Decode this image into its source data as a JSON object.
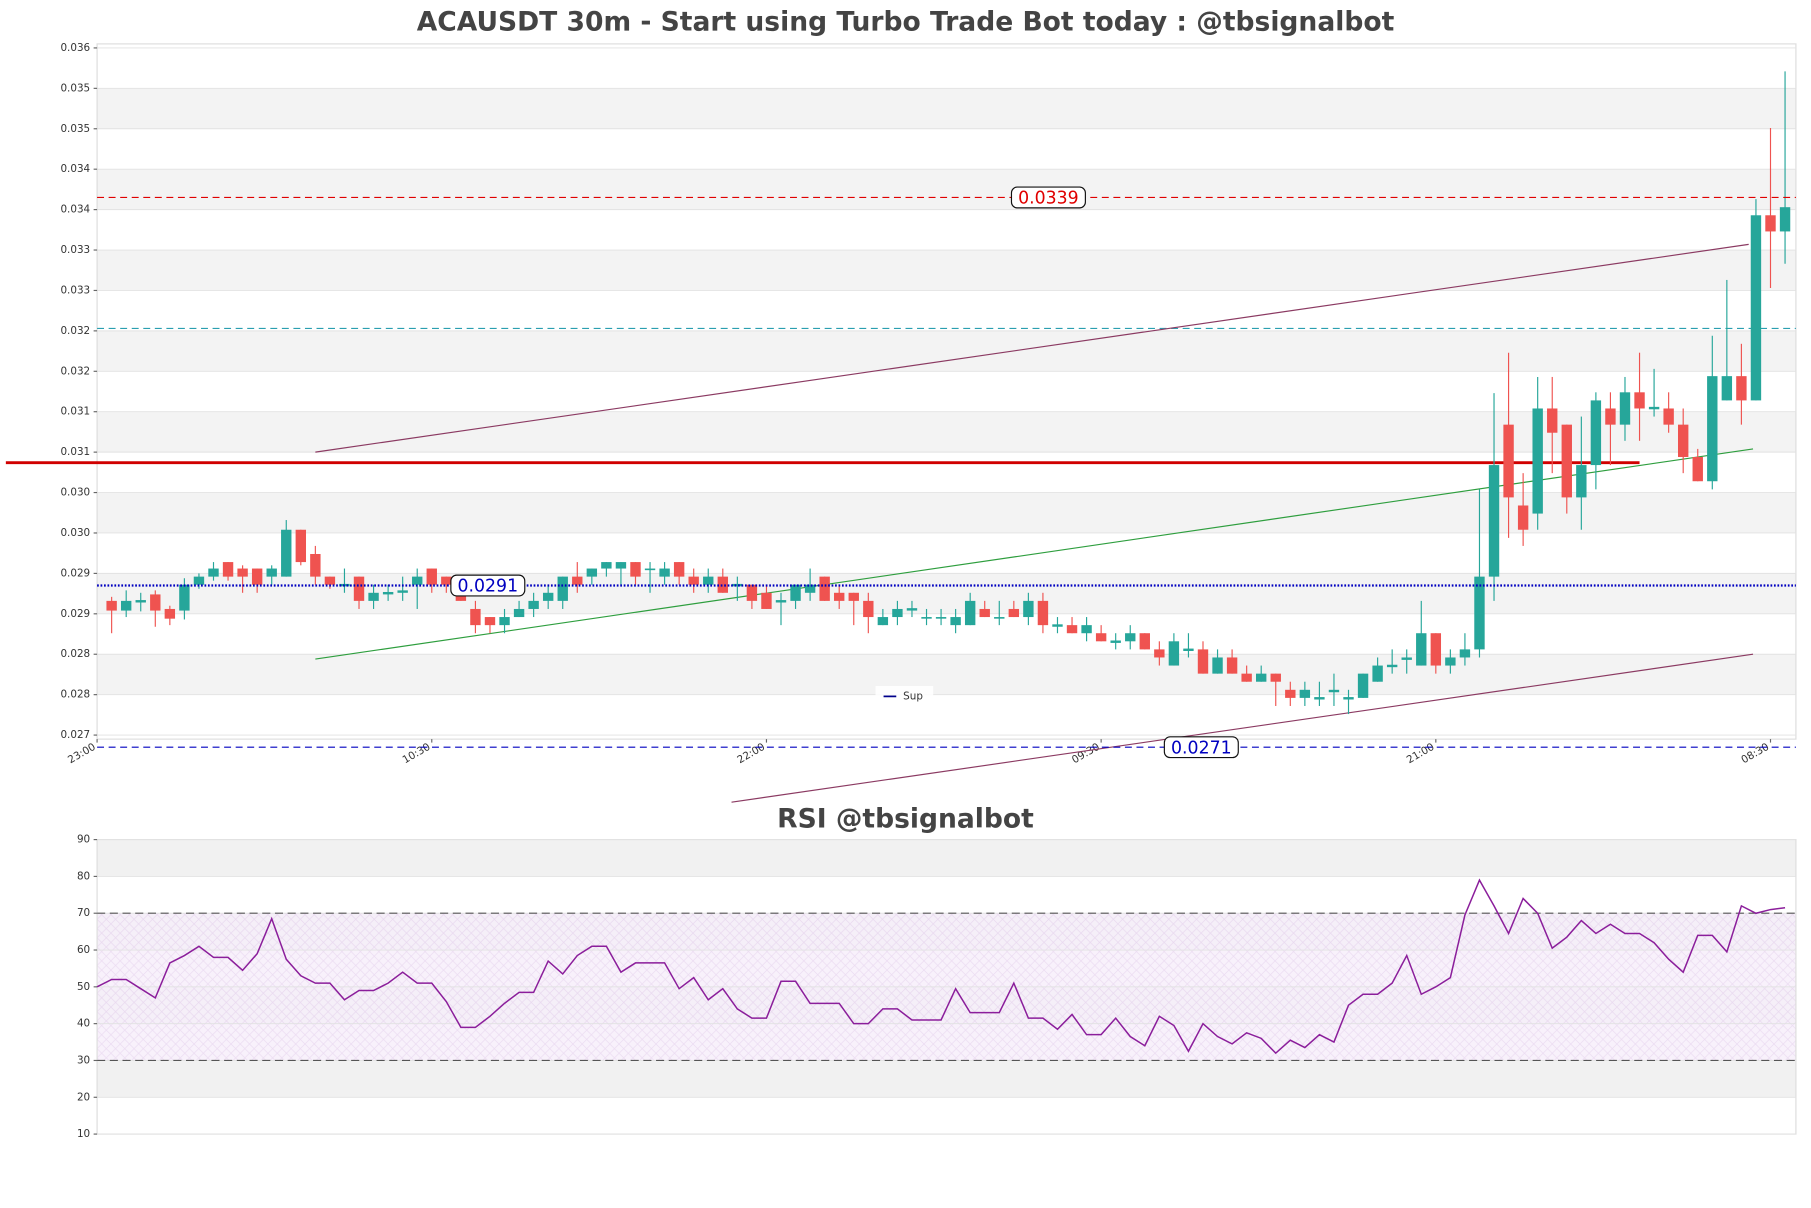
{
  "chart_data": [
    {
      "type": "candlestick",
      "title": "ACAUSDT 30m - Start using Turbo Trade Bot today : @tbsignalbot",
      "categories": [
        "23:00",
        null,
        null,
        null,
        null,
        null,
        null,
        null,
        null,
        null,
        null,
        null,
        null,
        null,
        null,
        null,
        null,
        null,
        null,
        null,
        null,
        null,
        null,
        "10:30",
        null,
        null,
        null,
        null,
        null,
        null,
        null,
        null,
        null,
        null,
        null,
        null,
        null,
        null,
        null,
        null,
        null,
        null,
        null,
        null,
        null,
        null,
        "22:00",
        null,
        null,
        null,
        null,
        null,
        null,
        null,
        null,
        null,
        null,
        null,
        null,
        null,
        null,
        null,
        null,
        null,
        null,
        null,
        null,
        null,
        null,
        "09:30",
        null,
        null,
        null,
        null,
        null,
        null,
        null,
        null,
        null,
        null,
        null,
        null,
        null,
        null,
        null,
        null,
        null,
        null,
        null,
        null,
        null,
        null,
        "21:00",
        null,
        null,
        null,
        null,
        null,
        null,
        null,
        null,
        null,
        null,
        null,
        null,
        null,
        null,
        null,
        null,
        null,
        null,
        null,
        null,
        null,
        null,
        "08:30",
        null
      ],
      "open": [
        null,
        0.02891,
        0.02879,
        0.02889,
        0.02899,
        0.02881,
        0.02879,
        0.02911,
        0.02921,
        0.02939,
        0.02931,
        0.02931,
        0.02921,
        0.02921,
        0.02979,
        0.02949,
        0.02921,
        0.02909,
        0.02921,
        0.02891,
        0.02899,
        0.02901,
        0.02911,
        0.02931,
        0.02921,
        0.02911,
        0.02881,
        0.02871,
        0.02861,
        0.02871,
        0.02881,
        0.02891,
        0.02891,
        0.02921,
        0.02921,
        0.02931,
        0.02931,
        0.02939,
        0.02929,
        0.02921,
        0.02939,
        0.02921,
        0.02911,
        0.02921,
        0.02909,
        0.02911,
        0.02901,
        0.02889,
        0.02891,
        0.02901,
        0.02921,
        0.02901,
        0.02901,
        0.02891,
        0.02861,
        0.02871,
        0.02879,
        0.02869,
        0.02869,
        0.02861,
        0.02861,
        0.02881,
        0.02869,
        0.02881,
        0.02871,
        0.02891,
        0.02859,
        0.02861,
        0.02851,
        0.02851,
        0.02839,
        0.02841,
        0.02851,
        0.02831,
        0.02811,
        0.02829,
        0.02831,
        0.02801,
        0.02821,
        0.02801,
        0.02791,
        0.02801,
        0.02781,
        0.02771,
        0.02769,
        0.02778,
        0.02769,
        0.02771,
        0.02791,
        0.02809,
        0.02818,
        0.02811,
        0.02851,
        0.02811,
        0.02821,
        0.02831,
        0.02921,
        0.03109,
        0.03009,
        0.02999,
        0.03129,
        0.03109,
        0.03019,
        0.03059,
        0.03129,
        0.03109,
        0.03149,
        0.03128,
        0.03129,
        0.03109,
        0.03069,
        0.03039,
        0.03139,
        0.03169,
        0.03139,
        0.03368,
        0.03348
      ],
      "high": [
        null,
        0.02896,
        0.02904,
        0.02901,
        0.02904,
        0.02885,
        0.02919,
        0.02925,
        0.02939,
        0.02939,
        0.02935,
        0.02931,
        0.02935,
        0.02991,
        0.02979,
        0.02959,
        0.02921,
        0.02931,
        0.02921,
        0.02911,
        0.02911,
        0.02921,
        0.02931,
        0.02931,
        0.02921,
        0.02921,
        0.02891,
        0.02871,
        0.02881,
        0.02891,
        0.02901,
        0.02911,
        0.02921,
        0.02939,
        0.02931,
        0.02939,
        0.02939,
        0.02939,
        0.02939,
        0.02939,
        0.02939,
        0.02931,
        0.02931,
        0.02931,
        0.02921,
        0.02911,
        0.02911,
        0.02901,
        0.02911,
        0.02931,
        0.02921,
        0.02911,
        0.02901,
        0.02901,
        0.02881,
        0.02891,
        0.02891,
        0.02881,
        0.02881,
        0.02881,
        0.02901,
        0.02891,
        0.02891,
        0.02891,
        0.02901,
        0.02901,
        0.02871,
        0.02871,
        0.02871,
        0.02861,
        0.02851,
        0.02861,
        0.02851,
        0.02841,
        0.02851,
        0.02851,
        0.02841,
        0.02831,
        0.02831,
        0.02811,
        0.02811,
        0.02801,
        0.02791,
        0.02791,
        0.02791,
        0.02801,
        0.02781,
        0.02801,
        0.02821,
        0.02831,
        0.02831,
        0.02891,
        0.02851,
        0.02831,
        0.02851,
        0.03029,
        0.03148,
        0.03198,
        0.03049,
        0.03168,
        0.03168,
        0.03109,
        0.03119,
        0.03149,
        0.03149,
        0.03168,
        0.03198,
        0.03178,
        0.03149,
        0.03129,
        0.03079,
        0.03219,
        0.03288,
        0.03209,
        0.03388,
        0.03476,
        0.03546
      ],
      "low": [
        null,
        0.02851,
        0.02871,
        0.02878,
        0.02859,
        0.02861,
        0.02868,
        0.02906,
        0.02916,
        0.02916,
        0.02901,
        0.02901,
        0.02911,
        0.02921,
        0.02935,
        0.02911,
        0.02906,
        0.02901,
        0.02881,
        0.02881,
        0.02891,
        0.02891,
        0.02881,
        0.02901,
        0.02901,
        0.02891,
        0.02851,
        0.02851,
        0.02851,
        0.02871,
        0.02871,
        0.02881,
        0.02881,
        0.02901,
        0.02911,
        0.02921,
        0.02911,
        0.02911,
        0.02901,
        0.02911,
        0.02911,
        0.02901,
        0.02901,
        0.02901,
        0.02891,
        0.02881,
        0.02881,
        0.02861,
        0.02881,
        0.02891,
        0.02891,
        0.02881,
        0.02861,
        0.02851,
        0.02861,
        0.02861,
        0.02871,
        0.02861,
        0.02861,
        0.02851,
        0.02861,
        0.02871,
        0.02861,
        0.02871,
        0.02861,
        0.02851,
        0.02851,
        0.02851,
        0.02841,
        0.02841,
        0.02831,
        0.02831,
        0.02831,
        0.02811,
        0.02811,
        0.02821,
        0.02801,
        0.02801,
        0.02801,
        0.02791,
        0.02791,
        0.02761,
        0.02761,
        0.02761,
        0.02761,
        0.02761,
        0.02751,
        0.02771,
        0.02791,
        0.02801,
        0.02801,
        0.02811,
        0.02801,
        0.02801,
        0.02811,
        0.02821,
        0.02891,
        0.02969,
        0.02959,
        0.02979,
        0.03049,
        0.02999,
        0.02979,
        0.03029,
        0.03059,
        0.03089,
        0.03089,
        0.03119,
        0.03099,
        0.03049,
        0.03039,
        0.03029,
        0.03139,
        0.03109,
        0.03139,
        0.03278,
        0.03308
      ],
      "close": [
        null,
        0.02879,
        0.02891,
        0.02892,
        0.02879,
        0.02869,
        0.02911,
        0.02921,
        0.02931,
        0.02921,
        0.02921,
        0.02911,
        0.02931,
        0.02979,
        0.02939,
        0.02921,
        0.02911,
        0.02912,
        0.02891,
        0.02901,
        0.02902,
        0.02904,
        0.02921,
        0.02911,
        0.02911,
        0.02891,
        0.02861,
        0.02861,
        0.02871,
        0.02881,
        0.02891,
        0.02901,
        0.02921,
        0.02911,
        0.02931,
        0.02939,
        0.02939,
        0.02921,
        0.02931,
        0.02931,
        0.02921,
        0.02911,
        0.02921,
        0.02901,
        0.02912,
        0.02891,
        0.02881,
        0.02892,
        0.02911,
        0.02911,
        0.02891,
        0.02891,
        0.02891,
        0.02871,
        0.02871,
        0.02881,
        0.02882,
        0.02871,
        0.02871,
        0.02871,
        0.02891,
        0.02871,
        0.02871,
        0.02871,
        0.02891,
        0.02861,
        0.02862,
        0.02851,
        0.02861,
        0.02841,
        0.02842,
        0.02851,
        0.02831,
        0.02821,
        0.02841,
        0.02832,
        0.02801,
        0.02821,
        0.02801,
        0.02791,
        0.02801,
        0.02791,
        0.02771,
        0.02781,
        0.02772,
        0.02781,
        0.02772,
        0.02801,
        0.02811,
        0.02812,
        0.02821,
        0.02851,
        0.02811,
        0.02821,
        0.02831,
        0.02921,
        0.03059,
        0.03019,
        0.02979,
        0.03129,
        0.03099,
        0.03019,
        0.03059,
        0.03139,
        0.03109,
        0.03149,
        0.03129,
        0.03131,
        0.03109,
        0.03069,
        0.03039,
        0.03169,
        0.03169,
        0.03139,
        0.03368,
        0.03348,
        0.03378
      ],
      "up_color": "#26a69a",
      "down_color": "#ef5350",
      "ylim": [
        0.0272,
        0.0358
      ],
      "yticks": [
        {
          "value": 0.02725,
          "label": "0.027"
        },
        {
          "value": 0.02775,
          "label": "0.028"
        },
        {
          "value": 0.02825,
          "label": "0.028"
        },
        {
          "value": 0.02875,
          "label": "0.029"
        },
        {
          "value": 0.02925,
          "label": "0.029"
        },
        {
          "value": 0.02975,
          "label": "0.030"
        },
        {
          "value": 0.03025,
          "label": "0.030"
        },
        {
          "value": 0.03075,
          "label": "0.031"
        },
        {
          "value": 0.03125,
          "label": "0.031"
        },
        {
          "value": 0.03175,
          "label": "0.032"
        },
        {
          "value": 0.03225,
          "label": "0.032"
        },
        {
          "value": 0.03275,
          "label": "0.033"
        },
        {
          "value": 0.03325,
          "label": "0.033"
        },
        {
          "value": 0.03375,
          "label": "0.034"
        },
        {
          "value": 0.03425,
          "label": "0.034"
        },
        {
          "value": 0.03475,
          "label": "0.035"
        },
        {
          "value": 0.03525,
          "label": "0.035"
        },
        {
          "value": 0.03575,
          "label": "0.036"
        }
      ],
      "levels": [
        {
          "value": 0.0339,
          "color": "#e00000",
          "style": "dashed",
          "pos": 0.56
        },
        {
          "value": 0.0291,
          "color": "#0000c0",
          "style": "dotted",
          "pos": 0.23
        },
        {
          "value": 0.0271,
          "color": "#0000c0",
          "style": "dashed",
          "pos": 0.65
        }
      ],
      "extra_level": {
        "value": 0.03228,
        "color": "#2a9fb0"
      },
      "resistance": {
        "value": 0.03062,
        "color": "#d00000"
      },
      "trendlines": [
        {
          "x": [
            15,
            113.5
          ],
          "values": [
            0.03075,
            0.03332
          ],
          "color": "#8b3a62"
        },
        {
          "x": [
            15,
            113.8
          ],
          "values": [
            0.02819,
            0.03079
          ],
          "color": "#2e9e3e"
        },
        {
          "x": [
            43.6,
            113.8
          ],
          "values": [
            0.02642,
            0.02825
          ],
          "color": "#8b3a62"
        }
      ],
      "legend": {
        "name": "Sup",
        "color": "#00008b"
      }
    },
    {
      "type": "line",
      "title": "RSI @tbsignalbot",
      "color": "#8b1e9b",
      "values": [
        50,
        52,
        52,
        49.5,
        47,
        56.5,
        58.5,
        61,
        58,
        58,
        54.5,
        59,
        68.5,
        57.5,
        53,
        51,
        51,
        46.5,
        49,
        49,
        51,
        54,
        51,
        51,
        46,
        39,
        39,
        42,
        45.5,
        48.5,
        48.5,
        57,
        53.5,
        58.5,
        61,
        61,
        54,
        56.5,
        56.5,
        56.5,
        49.5,
        52.5,
        46.5,
        49.5,
        44,
        41.5,
        41.5,
        51.5,
        51.5,
        45.5,
        45.5,
        45.5,
        40,
        40,
        44,
        44,
        41,
        41,
        41,
        49.5,
        43,
        43,
        43,
        51,
        41.5,
        41.5,
        38.5,
        42.5,
        37,
        37,
        41.5,
        36.5,
        34,
        42,
        39.5,
        32.5,
        40,
        36.5,
        34.5,
        37.5,
        36,
        32,
        35.5,
        33.5,
        37,
        35,
        45,
        48,
        48,
        51,
        58.5,
        48,
        50,
        52.5,
        69.5,
        79,
        72,
        64.5,
        74,
        70,
        60.5,
        63.5,
        68,
        64.5,
        67,
        64.5,
        64.5,
        62,
        57.5,
        54,
        64,
        64,
        59.5,
        72,
        70,
        71,
        71.5
      ],
      "ylim": [
        10,
        90
      ],
      "yticks": [
        10,
        20,
        30,
        40,
        50,
        60,
        70,
        80,
        90
      ],
      "overbought": 70,
      "oversold": 30
    }
  ]
}
